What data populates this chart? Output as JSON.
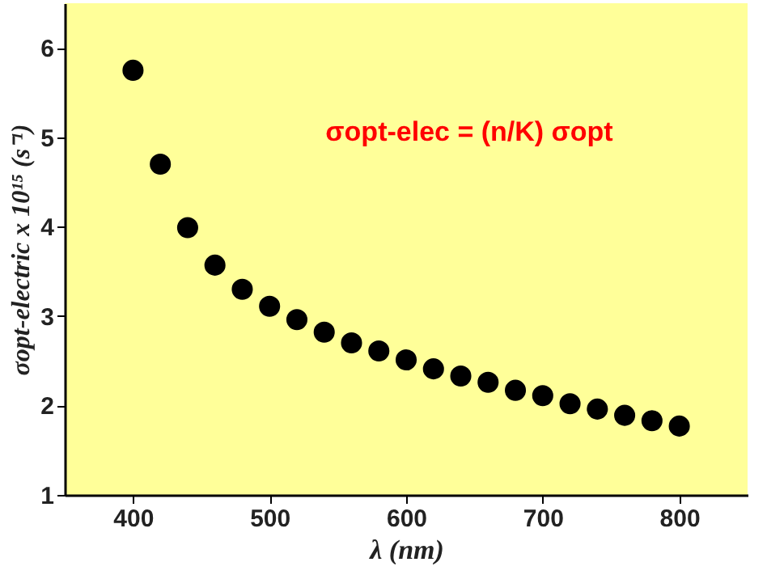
{
  "chart_data": {
    "type": "scatter",
    "xlabel": "λ (nm)",
    "ylabel": "σopt-electric x 10¹⁵ (s⁻¹)",
    "x": [
      400,
      420,
      440,
      460,
      480,
      500,
      520,
      540,
      560,
      580,
      600,
      620,
      640,
      660,
      680,
      700,
      720,
      740,
      760,
      780,
      800
    ],
    "series": [
      {
        "color": "#000000",
        "values": [
          5.75,
          4.7,
          3.99,
          3.57,
          3.3,
          3.11,
          2.96,
          2.82,
          2.7,
          2.61,
          2.51,
          2.41,
          2.33,
          2.26,
          2.17,
          2.11,
          2.02,
          1.96,
          1.89,
          1.83,
          1.77
        ]
      }
    ],
    "xlim": [
      350,
      850
    ],
    "xticks": [
      400,
      500,
      600,
      700,
      800
    ],
    "ylim": [
      1,
      6.5
    ],
    "yticks": [
      1,
      2,
      3,
      4,
      5,
      6
    ],
    "marker": "circle",
    "grid": false,
    "annotations": [
      "σopt-elec = (n/K) σopt"
    ]
  }
}
